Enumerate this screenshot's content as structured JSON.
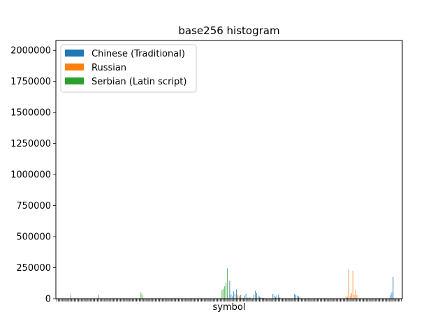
{
  "chart_data": {
    "type": "bar",
    "title": "base256 histogram",
    "xlabel": "symbol",
    "ylabel": "",
    "ylim": [
      0,
      2080000
    ],
    "yticks": [
      0,
      250000,
      500000,
      750000,
      1000000,
      1250000,
      1500000,
      1750000,
      2000000
    ],
    "ytick_labels": [
      "0",
      "250000",
      "500000",
      "750000",
      "1000000",
      "1250000",
      "1500000",
      "1750000",
      "2000000"
    ],
    "legend_position": "top-left",
    "grid": false,
    "num_symbols": 256,
    "series": [
      {
        "name": "Chinese (Traditional)",
        "color": "#1f77b4",
        "values": [
          0,
          0,
          0,
          0,
          0,
          0,
          0,
          0,
          0,
          0,
          0,
          0,
          0,
          0,
          0,
          0,
          0,
          0,
          0,
          0,
          0,
          0,
          0,
          0,
          0,
          0,
          0,
          0,
          0,
          0,
          0,
          30000,
          0,
          0,
          0,
          0,
          0,
          0,
          0,
          0,
          0,
          0,
          0,
          0,
          0,
          0,
          3000,
          0,
          0,
          0,
          0,
          0,
          0,
          0,
          0,
          0,
          0,
          0,
          0,
          0,
          0,
          0,
          0,
          0,
          0,
          0,
          0,
          0,
          0,
          0,
          0,
          0,
          0,
          0,
          0,
          0,
          0,
          0,
          0,
          0,
          0,
          0,
          0,
          0,
          0,
          0,
          0,
          0,
          0,
          0,
          0,
          0,
          0,
          0,
          0,
          0,
          0,
          0,
          0,
          0,
          0,
          0,
          0,
          0,
          0,
          0,
          0,
          0,
          0,
          0,
          0,
          0,
          0,
          0,
          0,
          0,
          0,
          0,
          0,
          0,
          0,
          0,
          0,
          0,
          0,
          0,
          0,
          0,
          145000,
          35000,
          20000,
          60000,
          40000,
          75000,
          25000,
          15000,
          30000,
          10000,
          5000,
          25000,
          40000,
          8000,
          5000,
          12000,
          3000,
          3000,
          30000,
          65000,
          45000,
          25000,
          15000,
          10000,
          8000,
          5000,
          3000,
          3000,
          3000,
          3000,
          3000,
          3000,
          40000,
          25000,
          15000,
          25000,
          30000,
          10000,
          0,
          0,
          0,
          0,
          0,
          0,
          0,
          0,
          0,
          0,
          40000,
          30000,
          25000,
          20000,
          15000,
          0,
          0,
          0,
          0,
          0,
          0,
          0,
          0,
          0,
          0,
          0,
          0,
          0,
          0,
          0,
          0,
          0,
          0,
          0,
          0,
          0,
          0,
          0,
          0,
          0,
          0,
          0,
          0,
          0,
          0,
          0,
          0,
          0,
          0,
          0,
          0,
          0,
          0,
          0,
          0,
          0,
          0,
          0,
          0,
          0,
          0,
          0,
          0,
          0,
          0,
          0,
          0,
          0,
          0,
          0,
          0,
          0,
          0,
          0,
          0,
          0,
          0,
          0,
          0,
          0,
          0,
          30000,
          50000,
          175000,
          0,
          0,
          0,
          0,
          0,
          0,
          0,
          0,
          0,
          0,
          0,
          0,
          0,
          0,
          0,
          0,
          0,
          0,
          0,
          0,
          0,
          0,
          0,
          0,
          0,
          0,
          0,
          0,
          0,
          0,
          0,
          0,
          0,
          0,
          0,
          0,
          0,
          0
        ]
      },
      {
        "name": "Russian",
        "color": "#ff7f0e",
        "values": [
          0,
          0,
          0,
          0,
          0,
          0,
          0,
          0,
          0,
          0,
          35000,
          0,
          0,
          0,
          0,
          0,
          0,
          0,
          0,
          0,
          0,
          0,
          0,
          0,
          0,
          0,
          0,
          0,
          0,
          0,
          0,
          0,
          0,
          0,
          0,
          0,
          0,
          0,
          0,
          0,
          0,
          0,
          0,
          0,
          0,
          0,
          0,
          0,
          0,
          0,
          0,
          0,
          0,
          0,
          0,
          0,
          0,
          0,
          0,
          0,
          0,
          0,
          0,
          0,
          0,
          0,
          0,
          0,
          0,
          0,
          0,
          0,
          0,
          0,
          0,
          0,
          0,
          0,
          0,
          0,
          0,
          0,
          0,
          0,
          0,
          0,
          0,
          0,
          0,
          0,
          0,
          0,
          0,
          0,
          0,
          0,
          0,
          0,
          0,
          0,
          0,
          0,
          0,
          0,
          0,
          0,
          0,
          0,
          0,
          0,
          0,
          0,
          0,
          0,
          0,
          0,
          0,
          0,
          0,
          0,
          0,
          0,
          0,
          0,
          0,
          0,
          0,
          0,
          0,
          0,
          0,
          0,
          0,
          0,
          30000,
          20000,
          15000,
          0,
          0,
          0,
          0,
          0,
          0,
          0,
          0,
          0,
          0,
          0,
          0,
          0,
          0,
          0,
          0,
          0,
          0,
          0,
          0,
          0,
          0,
          0,
          0,
          0,
          0,
          0,
          0,
          0,
          0,
          0,
          0,
          0,
          0,
          0,
          0,
          0,
          0,
          0,
          0,
          0,
          0,
          0,
          0,
          0,
          0,
          0,
          0,
          0,
          0,
          0,
          0,
          0,
          0,
          0,
          0,
          0,
          0,
          0,
          0,
          0,
          0,
          0,
          0,
          0,
          0,
          0,
          0,
          0,
          0,
          0,
          0,
          0,
          0,
          0,
          0,
          0,
          20000,
          15000,
          235000,
          25000,
          45000,
          225000,
          30000,
          70000,
          30000,
          0,
          0,
          0,
          0,
          0,
          0,
          0,
          0,
          0,
          0,
          0,
          0,
          0,
          0,
          0,
          0,
          0,
          0,
          0,
          0,
          0,
          0,
          0,
          0,
          0,
          0,
          0,
          0,
          0,
          0,
          0,
          0,
          0,
          0,
          0,
          0,
          0,
          0,
          0,
          0,
          0,
          0,
          0
        ]
      },
      {
        "name": "Serbian (Latin script)",
        "color": "#2ca02c",
        "values": [
          0,
          0,
          0,
          0,
          0,
          0,
          0,
          0,
          0,
          0,
          0,
          0,
          0,
          0,
          0,
          0,
          0,
          0,
          0,
          0,
          0,
          0,
          0,
          0,
          0,
          0,
          0,
          0,
          0,
          0,
          0,
          0,
          0,
          0,
          0,
          0,
          0,
          0,
          0,
          0,
          0,
          0,
          0,
          0,
          0,
          0,
          0,
          0,
          0,
          0,
          0,
          0,
          0,
          0,
          0,
          0,
          0,
          0,
          0,
          0,
          0,
          0,
          50000,
          30000,
          0,
          0,
          0,
          0,
          0,
          0,
          0,
          0,
          0,
          0,
          0,
          0,
          0,
          0,
          0,
          0,
          0,
          0,
          0,
          0,
          0,
          0,
          0,
          0,
          0,
          0,
          0,
          0,
          0,
          0,
          0,
          0,
          0,
          0,
          0,
          0,
          0,
          0,
          0,
          0,
          0,
          0,
          0,
          0,
          0,
          0,
          0,
          0,
          0,
          0,
          0,
          0,
          0,
          0,
          0,
          0,
          0,
          0,
          70000,
          80000,
          100000,
          130000,
          245000,
          5000,
          0,
          0,
          0,
          0,
          0,
          0,
          0,
          0,
          0,
          0,
          0,
          0,
          0,
          0,
          0,
          0,
          0,
          0,
          0,
          0,
          0,
          0,
          0,
          0,
          0,
          0,
          0,
          0,
          0,
          0,
          0,
          0,
          0,
          0,
          0,
          0,
          0,
          0,
          0,
          0,
          0,
          0,
          0,
          0,
          0,
          0,
          0,
          0,
          0,
          0,
          0,
          0,
          0,
          0,
          0,
          0,
          0,
          0,
          0,
          0,
          0,
          0,
          0,
          0,
          0,
          0,
          0,
          0,
          0,
          0,
          0,
          0,
          0,
          0,
          0,
          0,
          0,
          0,
          0,
          0,
          0,
          0,
          0,
          0,
          0,
          0,
          0,
          0,
          0,
          0,
          0,
          0,
          0,
          0,
          0,
          0,
          0,
          0,
          0,
          0,
          0,
          0,
          0,
          0,
          0,
          0,
          0,
          0,
          0,
          0,
          0,
          0,
          0,
          0,
          0,
          0,
          0,
          0,
          0,
          0,
          0,
          0,
          0,
          0,
          0,
          0,
          0,
          0
        ]
      }
    ]
  }
}
